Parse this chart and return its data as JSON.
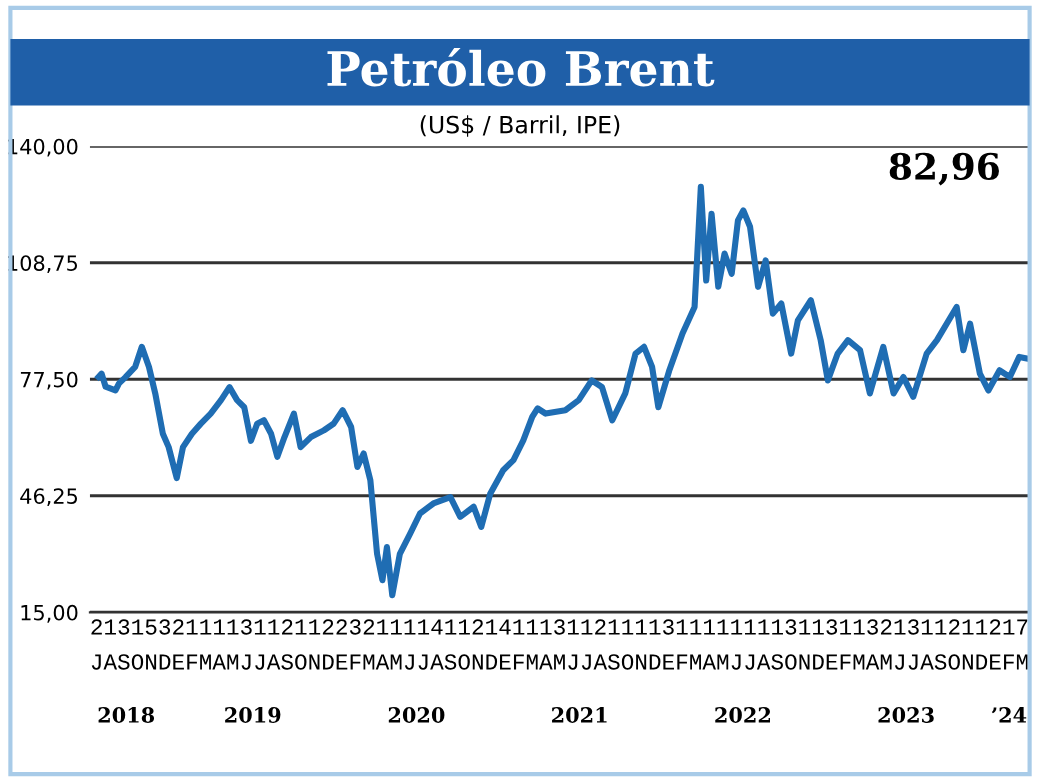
{
  "chart_data": {
    "type": "line",
    "title": "Petróleo Brent",
    "subtitle": "(US$ / Barril, IPE)",
    "annotations": [
      "82,96",
      "213153211113112112232111141121411131121111311111111311311321311211217",
      "JASONDEFMAMJJASONDEFMAMJJASONDEFMAMJJASONDEFMAMJJASONDEFMAMJJASONDEFM"
    ],
    "xlim": [
      "2018-07-01",
      "2024-03-31"
    ],
    "ylim": [
      15,
      140
    ],
    "yticks": [
      {
        "value": 15,
        "label": "15,00"
      },
      {
        "value": 46.25,
        "label": "46,25"
      },
      {
        "value": 77.5,
        "label": "77,50"
      },
      {
        "value": 108.75,
        "label": "108,75"
      },
      {
        "value": 140,
        "label": "140,00"
      }
    ],
    "xticks": [
      {
        "value": "2018-09-20",
        "label": "2018"
      },
      {
        "value": "2019-06-30",
        "label": "2019"
      },
      {
        "value": "2020-06-30",
        "label": "2020"
      },
      {
        "value": "2021-06-30",
        "label": "2021"
      },
      {
        "value": "2022-06-30",
        "label": "2022"
      },
      {
        "value": "2023-06-30",
        "label": "2023"
      },
      {
        "value": "2024-02-15",
        "label": "’24"
      }
    ],
    "grid": "y",
    "legend": false,
    "marker": "none",
    "line_style": "solid",
    "series": [
      {
        "color": "#1f6db3",
        "x": [
          "2018-07-20",
          "2018-07-27",
          "2018-08-05",
          "2018-08-27",
          "2018-09-04",
          "2018-09-18",
          "2018-10-10",
          "2018-10-25",
          "2018-11-10",
          "2018-11-24",
          "2018-12-11",
          "2018-12-24",
          "2019-01-11",
          "2019-01-25",
          "2019-02-14",
          "2019-03-06",
          "2019-03-28",
          "2019-04-20",
          "2019-05-09",
          "2019-05-26",
          "2019-06-11",
          "2019-06-26",
          "2019-07-10",
          "2019-07-25",
          "2019-08-10",
          "2019-08-24",
          "2019-09-09",
          "2019-09-30",
          "2019-10-15",
          "2019-11-07",
          "2019-12-06",
          "2019-12-28",
          "2020-01-17",
          "2020-02-05",
          "2020-02-19",
          "2020-03-04",
          "2020-03-19",
          "2020-04-03",
          "2020-04-15",
          "2020-04-25",
          "2020-05-07",
          "2020-05-24",
          "2020-06-16",
          "2020-07-08",
          "2020-08-07",
          "2020-09-14",
          "2020-10-06",
          "2020-11-05",
          "2020-11-22",
          "2020-12-12",
          "2021-01-10",
          "2021-02-02",
          "2021-02-24",
          "2021-03-16",
          "2021-03-28",
          "2021-04-15",
          "2021-05-29",
          "2021-06-28",
          "2021-07-27",
          "2021-08-19",
          "2021-09-11",
          "2021-10-10",
          "2021-11-02",
          "2021-11-21",
          "2021-12-09",
          "2021-12-23",
          "2022-01-16",
          "2022-02-15",
          "2022-03-14",
          "2022-03-28",
          "2022-04-09",
          "2022-04-21",
          "2022-05-06",
          "2022-05-20",
          "2022-06-05",
          "2022-06-19",
          "2022-07-01",
          "2022-07-16",
          "2022-08-03",
          "2022-08-20",
          "2022-09-05",
          "2022-09-24",
          "2022-10-16",
          "2022-10-31",
          "2022-11-29",
          "2022-12-21",
          "2023-01-06",
          "2023-01-28",
          "2023-02-20",
          "2023-03-19",
          "2023-04-10",
          "2023-05-10",
          "2023-06-02",
          "2023-06-24",
          "2023-07-16",
          "2023-08-15",
          "2023-09-07",
          "2023-10-21",
          "2023-11-05",
          "2023-11-20",
          "2023-12-12",
          "2023-12-31",
          "2024-01-25",
          "2024-02-17",
          "2024-03-09",
          "2024-03-30"
        ],
        "values": [
          78.1,
          79,
          75.5,
          74.5,
          76.4,
          78,
          80.8,
          86.2,
          80.8,
          73.7,
          62.9,
          59.3,
          51,
          59.3,
          62.9,
          65.6,
          68.3,
          71.9,
          75.4,
          71.9,
          70,
          61,
          65.6,
          66.5,
          62.9,
          56.7,
          62,
          68.3,
          59.3,
          62,
          63.8,
          65.6,
          69.2,
          64.7,
          54,
          57.6,
          50.4,
          30.7,
          23.6,
          32.5,
          19.6,
          30.7,
          36.1,
          41.5,
          44.2,
          45.9,
          40.6,
          43.3,
          37.9,
          46.8,
          53.1,
          55.8,
          61.1,
          67.4,
          69.7,
          68.3,
          69.2,
          71.9,
          77.2,
          75.4,
          66.5,
          73.7,
          84.4,
          86.2,
          80.8,
          70,
          79.7,
          89.8,
          96.9,
          129.1,
          104,
          121.9,
          102.3,
          111.2,
          105.8,
          120.1,
          122.8,
          118.4,
          102.3,
          109.4,
          95.1,
          97.8,
          84.4,
          93.3,
          98.7,
          88,
          77.2,
          84.4,
          88,
          85.3,
          73.7,
          86.2,
          73.7,
          78.1,
          72.8,
          84.4,
          88,
          96.9,
          85.3,
          92.4,
          79,
          74.5,
          79.9,
          78.1,
          83.5,
          83
        ]
      }
    ]
  }
}
